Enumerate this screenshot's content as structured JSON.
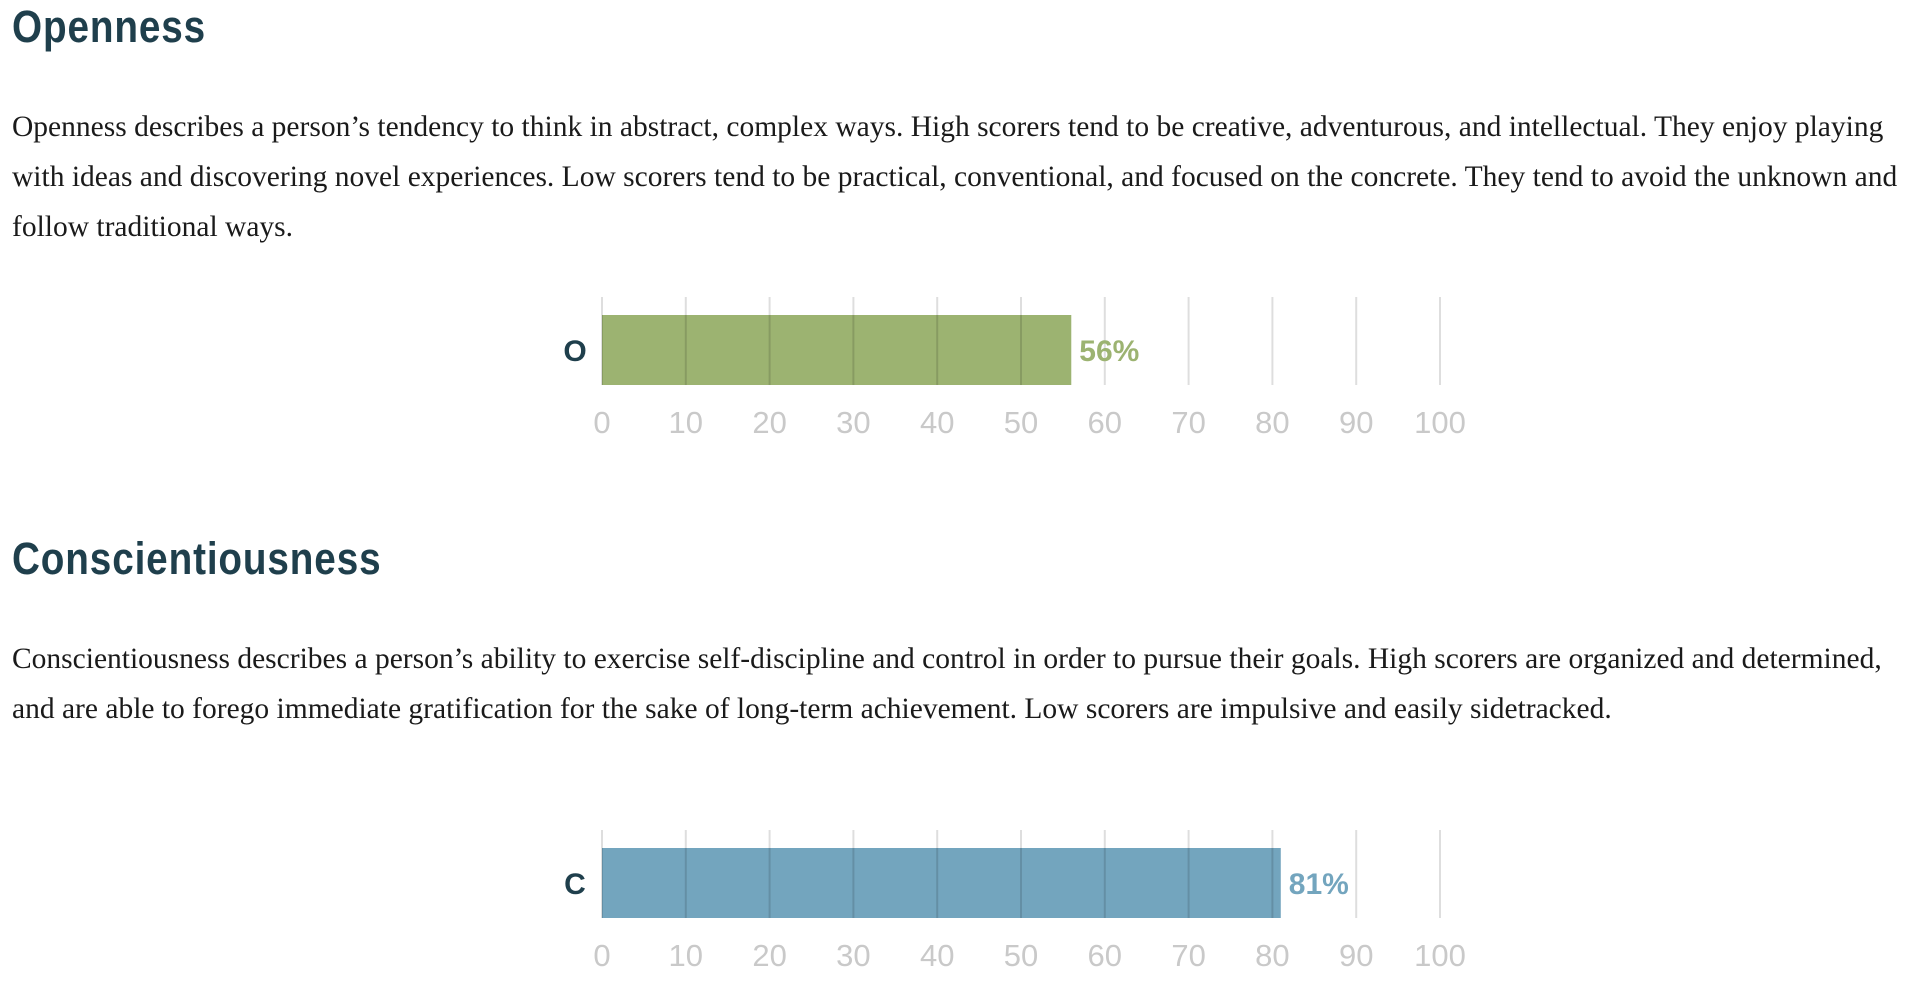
{
  "sections": [
    {
      "title": "Openness",
      "description": "Openness describes a person’s tendency to think in abstract, complex ways. High scorers tend to be creative, adventurous, and intellectual. They enjoy playing with ideas and discovering novel experiences. Low scorers tend to be practical, conventional, and focused on the concrete. They tend to avoid the unknown and follow traditional ways."
    },
    {
      "title": "Conscientiousness",
      "description": "Conscientiousness describes a person’s ability to exercise self-discipline and control in order to pursue their goals. High scorers are organized and determined, and are able to forego immediate gratification for the sake of long-term achievement. Low scorers are impulsive and easily sidetracked."
    }
  ],
  "chart_data": [
    {
      "type": "bar",
      "orientation": "horizontal",
      "categories": [
        "O"
      ],
      "values": [
        56
      ],
      "value_labels": [
        "56%"
      ],
      "color": "#9cb371",
      "xlim": [
        0,
        100
      ],
      "xticks": [
        0,
        10,
        20,
        30,
        40,
        50,
        60,
        70,
        80,
        90,
        100
      ],
      "grid": true,
      "title": "",
      "xlabel": "",
      "ylabel": ""
    },
    {
      "type": "bar",
      "orientation": "horizontal",
      "categories": [
        "C"
      ],
      "values": [
        81
      ],
      "value_labels": [
        "81%"
      ],
      "color": "#73a5be",
      "xlim": [
        0,
        100
      ],
      "xticks": [
        0,
        10,
        20,
        30,
        40,
        50,
        60,
        70,
        80,
        90,
        100
      ],
      "grid": true,
      "title": "",
      "xlabel": "",
      "ylabel": ""
    }
  ]
}
